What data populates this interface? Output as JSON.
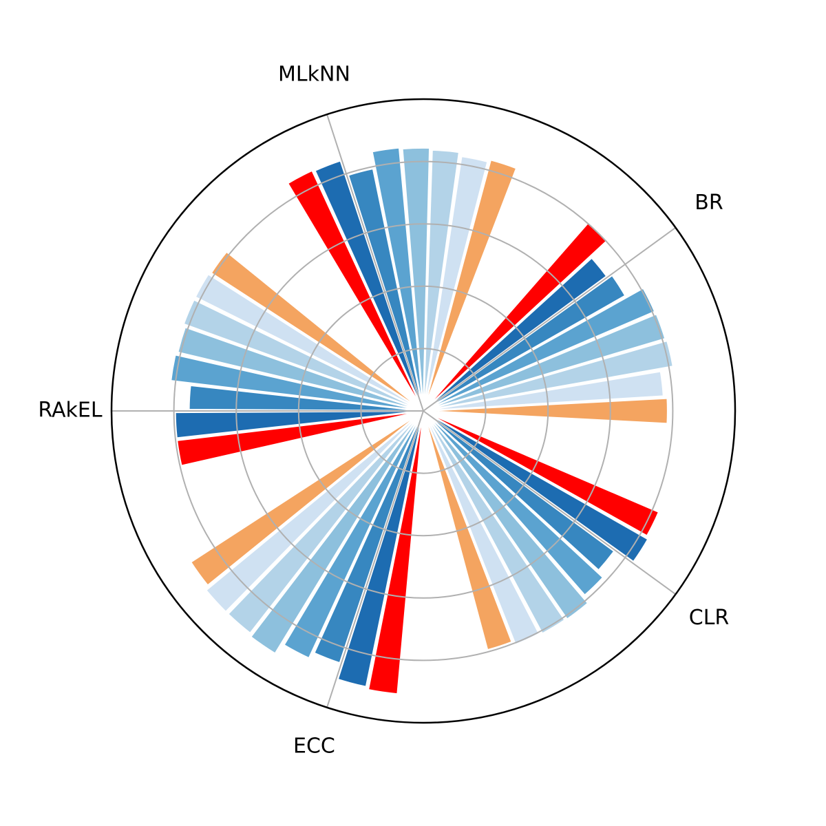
{
  "chart_data": {
    "type": "polar_bar",
    "xlim": [
      0,
      360
    ],
    "xticks": [
      {
        "value": 36,
        "label": "BR"
      },
      {
        "value": 108,
        "label": "MLkNN"
      },
      {
        "value": 180,
        "label": "RAkEL"
      },
      {
        "value": 252,
        "label": "ECC"
      },
      {
        "value": 324,
        "label": "CLR"
      }
    ],
    "ylim": [
      0,
      5
    ],
    "yticks": [
      1,
      2,
      3,
      4
    ],
    "grid": true,
    "series": [
      {
        "color": "#f4a460",
        "x": [
          0,
          72,
          144,
          216,
          288
        ],
        "values": [
          3.92,
          4.17,
          4.06,
          4.45,
          3.97
        ]
      },
      {
        "color": "#cfe1f2",
        "x": [
          6.5,
          78.5,
          150.5,
          222.5,
          294.5
        ],
        "values": [
          3.86,
          4.13,
          4.09,
          4.52,
          4.03
        ]
      },
      {
        "color": "#b3d3e8",
        "x": [
          13.1,
          85.1,
          157.1,
          229.1,
          301.1
        ],
        "values": [
          4.07,
          4.19,
          4.09,
          4.52,
          4.05
        ]
      },
      {
        "color": "#8dc0dd",
        "x": [
          19.6,
          91.6,
          163.6,
          235.6,
          307.6
        ],
        "values": [
          4.05,
          4.22,
          4.05,
          4.56,
          4.06
        ]
      },
      {
        "color": "#5ba3d0",
        "x": [
          26.2,
          98.2,
          170.2,
          242.2,
          314.2
        ],
        "values": [
          4.04,
          4.24,
          4.08,
          4.37,
          3.93
        ]
      },
      {
        "color": "#3787c0",
        "x": [
          32.7,
          104.7,
          176.7,
          248.7,
          320.7
        ],
        "values": [
          3.73,
          3.97,
          3.76,
          4.26,
          3.8
        ]
      },
      {
        "color": "#1d6cb1",
        "x": [
          39.3,
          111.3,
          183.3,
          255.3,
          327.3
        ],
        "values": [
          3.65,
          4.23,
          3.98,
          4.52,
          4.15
        ]
      },
      {
        "color": "#ff0000",
        "x": [
          45.8,
          117.8,
          189.8,
          261.8,
          333.8
        ],
        "values": [
          4.02,
          4.25,
          3.98,
          4.56,
          4.11
        ]
      }
    ]
  }
}
